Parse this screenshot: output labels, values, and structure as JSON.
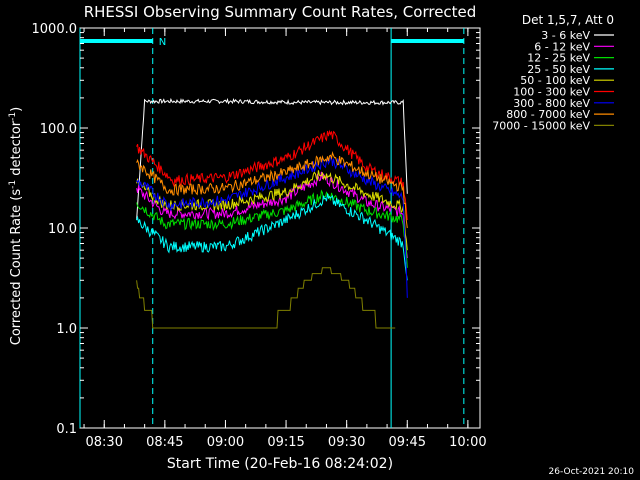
{
  "chart_data": {
    "type": "line",
    "title": "RHESSI Observing Summary Count Rates, Corrected",
    "xlabel": "Start Time (20-Feb-16 08:24:02)",
    "ylabel_main": "Corrected Count Rate (s",
    "ylabel_sup1": "-1",
    "ylabel_mid": " detector",
    "ylabel_sup2": "-1",
    "ylabel_end": ")",
    "x_scale": "time",
    "x_range": [
      "08:24",
      "10:03"
    ],
    "x_ticks": [
      "08:30",
      "08:45",
      "09:00",
      "09:15",
      "09:30",
      "09:45",
      "10:00"
    ],
    "y_scale": "log",
    "ylim": [
      0.1,
      1000
    ],
    "y_ticks": [
      "1000.0",
      "100.0",
      "10.0",
      "1.0",
      "0.1"
    ],
    "legend_header": "Det 1,5,7, Att 0",
    "legend_placement": "right",
    "grid": false,
    "markers": {
      "night_label": "N",
      "night_bars": [
        [
          "08:24",
          "08:42"
        ],
        [
          "09:41",
          "09:59"
        ]
      ],
      "dashed_lines": [
        "08:42",
        "09:59"
      ],
      "solid_lines": [
        "08:24",
        "09:41"
      ]
    },
    "data_start": "08:38",
    "data_end": "09:45",
    "series": [
      {
        "name": "3 - 6 keV",
        "color": "#ffffff",
        "x": [
          "08:38",
          "08:40",
          "09:00",
          "09:20",
          "09:44",
          "09:45"
        ],
        "y": [
          12,
          185,
          185,
          180,
          180,
          22
        ]
      },
      {
        "name": "6 - 12 keV",
        "color": "#ff00ff",
        "x": [
          "08:38",
          "08:45",
          "09:00",
          "09:15",
          "09:24",
          "09:35",
          "09:44",
          "09:45"
        ],
        "y": [
          25,
          14,
          14,
          20,
          33,
          18,
          14,
          5
        ]
      },
      {
        "name": "12 - 25 keV",
        "color": "#00dd00",
        "x": [
          "08:38",
          "08:45",
          "09:00",
          "09:15",
          "09:25",
          "09:35",
          "09:44",
          "09:45"
        ],
        "y": [
          18,
          11,
          11,
          15,
          22,
          15,
          12,
          4
        ]
      },
      {
        "name": "25 - 50 keV",
        "color": "#00ffff",
        "x": [
          "08:38",
          "08:46",
          "09:00",
          "09:15",
          "09:25",
          "09:35",
          "09:44",
          "09:45"
        ],
        "y": [
          12,
          6.5,
          6.5,
          12,
          20,
          12,
          7,
          3
        ]
      },
      {
        "name": "50 - 100 keV",
        "color": "#dddd00",
        "x": [
          "08:38",
          "08:45",
          "09:00",
          "09:15",
          "09:24",
          "09:35",
          "09:44",
          "09:45"
        ],
        "y": [
          28,
          17,
          17,
          23,
          35,
          22,
          16,
          6
        ]
      },
      {
        "name": "100 - 300 keV",
        "color": "#ff0000",
        "x": [
          "08:38",
          "08:47",
          "09:00",
          "09:15",
          "09:26",
          "09:35",
          "09:44",
          "09:45"
        ],
        "y": [
          65,
          30,
          32,
          50,
          88,
          40,
          28,
          12
        ]
      },
      {
        "name": "300 - 800 keV",
        "color": "#0000ff",
        "x": [
          "08:38",
          "08:46",
          "09:00",
          "09:15",
          "09:26",
          "09:35",
          "09:44",
          "09:45"
        ],
        "y": [
          30,
          17,
          19,
          32,
          48,
          30,
          20,
          2
        ]
      },
      {
        "name": "800 - 7000 keV",
        "color": "#ff8c00",
        "x": [
          "08:38",
          "08:46",
          "09:00",
          "09:15",
          "09:26",
          "09:35",
          "09:44",
          "09:45"
        ],
        "y": [
          45,
          24,
          25,
          36,
          52,
          35,
          25,
          10
        ]
      },
      {
        "name": "7000 - 15000 keV",
        "color": "#808000",
        "x": [
          "08:38",
          "08:39",
          "08:41",
          "08:43",
          "09:00",
          "09:10",
          "09:15",
          "09:20",
          "09:25",
          "09:30",
          "09:35",
          "09:40",
          "09:42"
        ],
        "y": [
          3,
          2,
          1.5,
          1,
          1,
          1,
          1.5,
          3,
          4,
          3,
          1.5,
          1,
          1
        ]
      }
    ]
  },
  "timestamp": "26-Oct-2021 20:10"
}
